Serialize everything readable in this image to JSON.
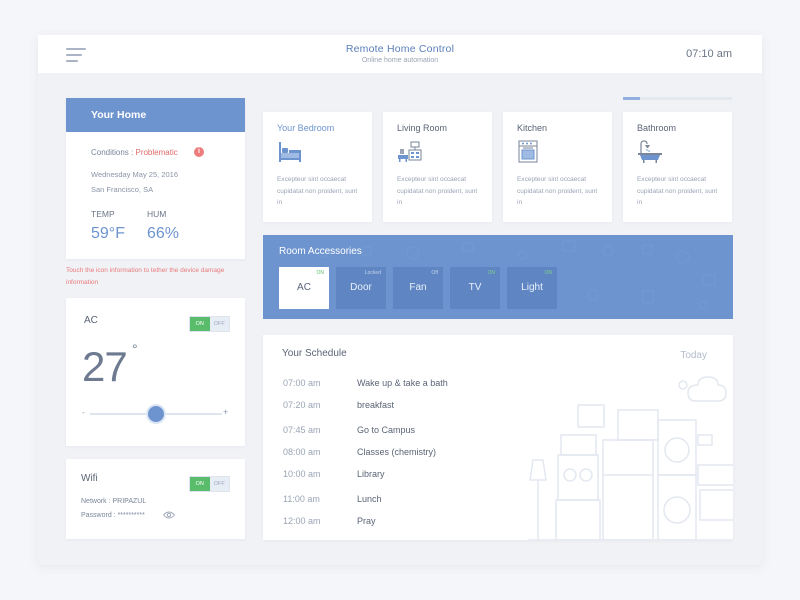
{
  "header": {
    "title": "Remote Home Control",
    "subtitle": "Online home automation",
    "time": "07:10 am"
  },
  "home": {
    "title": "Your Home",
    "conditions_label": "Conditions :",
    "conditions_value": "Problematic",
    "date": "Wednesday May 25, 2016",
    "location": "San Francisco, SA",
    "temp_label": "TEMP",
    "temp_value": "59°F",
    "hum_label": "HUM",
    "hum_value": "66%",
    "warning": "Touch the icon information to tether the device damage information"
  },
  "ac": {
    "title": "AC",
    "on_label": "ON",
    "off_label": "OFF",
    "temperature": "27",
    "degree": "°",
    "minus": "-",
    "plus": "+",
    "slider_fraction": 0.5
  },
  "wifi": {
    "title": "Wifi",
    "on_label": "ON",
    "off_label": "OFF",
    "network": "Network : PRIPAZUL",
    "password": "Password : **********"
  },
  "rooms_progress_fraction": 0.16,
  "rooms": [
    {
      "name": "Your Bedroom",
      "icon": "bed-icon",
      "description": "Excepteur sint occaecat cupidatat non proident, sunt in"
    },
    {
      "name": "Living Room",
      "icon": "living-room-icon",
      "description": "Excepteur sint occaecat cupidatat non proident, sunt in"
    },
    {
      "name": "Kitchen",
      "icon": "stove-icon",
      "description": "Excepteur sint occaecat cupidatat non proident, sunt in"
    },
    {
      "name": "Bathroom",
      "icon": "bathtub-icon",
      "description": "Excepteur sint occaecat cupidatat non proident, sunt in"
    }
  ],
  "accessories": {
    "title": "Room Accessories",
    "items": [
      {
        "label": "AC",
        "status": "ON"
      },
      {
        "label": "Door",
        "status": "Locked"
      },
      {
        "label": "Fan",
        "status": "Off"
      },
      {
        "label": "TV",
        "status": "ON"
      },
      {
        "label": "Light",
        "status": "ON"
      }
    ]
  },
  "schedule": {
    "title": "Your Schedule",
    "today": "Today",
    "items": [
      {
        "time": "07:00 am",
        "activity": "Wake up & take a bath"
      },
      {
        "time": "07:20 am",
        "activity": "breakfast"
      },
      {
        "time": "07:45 am",
        "activity": "Go to Campus"
      },
      {
        "time": "08:00 am",
        "activity": "Classes (chemistry)"
      },
      {
        "time": "10:00 am",
        "activity": "Library"
      },
      {
        "time": "11:00 am",
        "activity": "Lunch"
      },
      {
        "time": "12:00 am",
        "activity": "Pray"
      }
    ]
  },
  "colors": {
    "accent": "#6d94cf",
    "on_green": "#59bc6b",
    "alert_red": "#e06a6a"
  }
}
